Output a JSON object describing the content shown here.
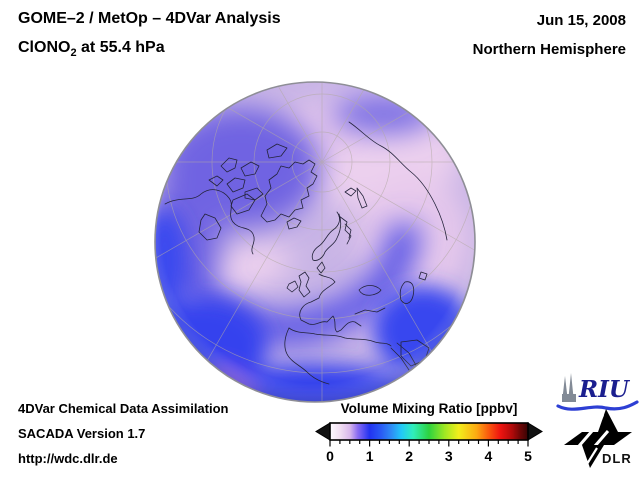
{
  "header": {
    "line1": "GOME–2 / MetOp – 4DVar Analysis",
    "species": "ClONO",
    "species_sub": "2",
    "level": " at 55.4 hPa",
    "date": "Jun 15, 2008",
    "hemisphere": "Northern Hemisphere"
  },
  "footer": {
    "line1": "4DVar Chemical Data Assimilation",
    "line2": "SACADA Version 1.7",
    "line3": "http://wdc.dlr.de"
  },
  "colorbar": {
    "title": "Volume Mixing Ratio [ppbv]",
    "min": 0,
    "max": 5,
    "tick_labels": [
      "0",
      "1",
      "2",
      "3",
      "4",
      "5"
    ],
    "minor_ticks_per_unit": 4,
    "gradient": [
      {
        "o": "0%",
        "c": "#fdfbff"
      },
      {
        "o": "5%",
        "c": "#f1dff2"
      },
      {
        "o": "10%",
        "c": "#d9b8ec"
      },
      {
        "o": "14%",
        "c": "#8a6cf2"
      },
      {
        "o": "20%",
        "c": "#2233f0"
      },
      {
        "o": "26%",
        "c": "#2a5cf4"
      },
      {
        "o": "31%",
        "c": "#2e8cf5"
      },
      {
        "o": "36%",
        "c": "#22c8f8"
      },
      {
        "o": "42%",
        "c": "#30eebb"
      },
      {
        "o": "50%",
        "c": "#2ed23f"
      },
      {
        "o": "58%",
        "c": "#a0e823"
      },
      {
        "o": "65%",
        "c": "#f2ee1c"
      },
      {
        "o": "74%",
        "c": "#fcaa12"
      },
      {
        "o": "80%",
        "c": "#fa5a0e"
      },
      {
        "o": "86%",
        "c": "#ee1410"
      },
      {
        "o": "92%",
        "c": "#b00a0a"
      },
      {
        "o": "96%",
        "c": "#6e0606"
      },
      {
        "o": "100%",
        "c": "#380404"
      }
    ]
  },
  "logos": {
    "riu": "RIU",
    "dlr": "DLR"
  },
  "globe_palette": {
    "background_lavender": "#c9b5e6",
    "pale_pink": "#ecd0ee",
    "medium_blue": "#6f64e2",
    "band_blue": "#5d58e6",
    "bright_blue": "#3442ee",
    "deep_blue_rim": "#2832e0",
    "magenta_accent": "#c265d8",
    "coastline": "#23233a",
    "graticule": "#b3aaa4",
    "rim": "#8e8e96"
  },
  "chart_data": {
    "type": "heatmap",
    "title": "GOME–2 / MetOp – 4DVar Analysis: ClONO2 at 55.4 hPa, Northern Hemisphere, Jun 15, 2008",
    "projection": "orthographic globe centered near the North Pole (Atlantic/Europe sector: Greenland, Canada, Scandinavia, Europe, North Africa, Russia visible)",
    "colorbar_label": "Volume Mixing Ratio [ppbv]",
    "value_range": [
      0,
      5
    ],
    "major_ticks": [
      0,
      1,
      2,
      3,
      4,
      5
    ],
    "minor_tick_step": 0.25,
    "field_regions": [
      {
        "region": "polar cap / Siberian sector (upper right)",
        "approx_value_ppbv": 0.3,
        "appearance": "pale pink-lavender"
      },
      {
        "region": "Canada / Greenland sector (upper left)",
        "approx_value_ppbv": 0.9,
        "appearance": "medium blue-violet"
      },
      {
        "region": "spiral band over Scandinavia-Europe curving up western Russia",
        "approx_value_ppbv": 1.0,
        "appearance": "blue band"
      },
      {
        "region": "mid-latitude core center-right and lower-left pink bands",
        "approx_value_ppbv": 0.4,
        "appearance": "pale pink"
      },
      {
        "region": "low-latitude limb (bottom, lower-left, lower-right edges)",
        "approx_value_ppbv": 1.5,
        "appearance": "bright blue"
      }
    ]
  }
}
